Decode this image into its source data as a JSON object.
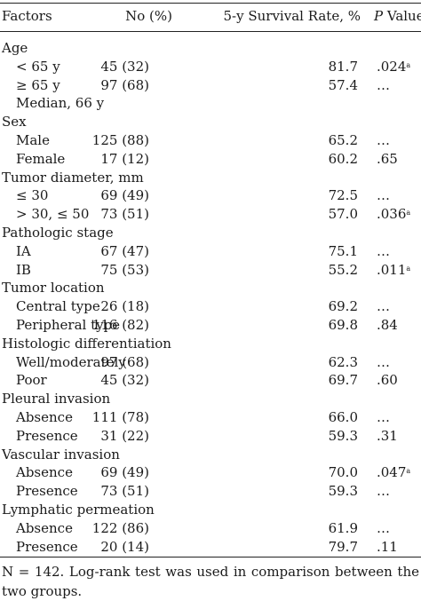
{
  "header": {
    "factors": "Factors",
    "no": "No (%)",
    "rate": "5-y Survival Rate, %",
    "p_italic": "P",
    "p_rest": " Value"
  },
  "rows": [
    {
      "factor": "Age",
      "sub": false,
      "no": "",
      "rate": "",
      "p": "",
      "mark": ""
    },
    {
      "factor": "< 65 y",
      "sub": true,
      "no": "45 (32)",
      "rate": "81.7",
      "p": ".024",
      "mark": "a"
    },
    {
      "factor": "≥ 65 y",
      "sub": true,
      "no": "97 (68)",
      "rate": "57.4",
      "p": "…",
      "mark": ""
    },
    {
      "factor": "Median, 66 y",
      "sub": true,
      "no": "",
      "rate": "",
      "p": "",
      "mark": ""
    },
    {
      "factor": "Sex",
      "sub": false,
      "no": "",
      "rate": "",
      "p": "",
      "mark": ""
    },
    {
      "factor": "Male",
      "sub": true,
      "no": "125 (88)",
      "rate": "65.2",
      "p": "…",
      "mark": ""
    },
    {
      "factor": "Female",
      "sub": true,
      "no": "17 (12)",
      "rate": "60.2",
      "p": ".65",
      "mark": ""
    },
    {
      "factor": "Tumor diameter, mm",
      "sub": false,
      "no": "",
      "rate": "",
      "p": "",
      "mark": ""
    },
    {
      "factor": "≤ 30",
      "sub": true,
      "no": "69 (49)",
      "rate": "72.5",
      "p": "…",
      "mark": ""
    },
    {
      "factor": "> 30, ≤ 50",
      "sub": true,
      "no": "73 (51)",
      "rate": "57.0",
      "p": ".036",
      "mark": "a"
    },
    {
      "factor": "Pathologic stage",
      "sub": false,
      "no": "",
      "rate": "",
      "p": "",
      "mark": ""
    },
    {
      "factor": "IA",
      "sub": true,
      "no": "67 (47)",
      "rate": "75.1",
      "p": "…",
      "mark": ""
    },
    {
      "factor": "IB",
      "sub": true,
      "no": "75 (53)",
      "rate": "55.2",
      "p": ".011",
      "mark": "a"
    },
    {
      "factor": "Tumor location",
      "sub": false,
      "no": "",
      "rate": "",
      "p": "",
      "mark": ""
    },
    {
      "factor": "Central type",
      "sub": true,
      "no": "26 (18)",
      "rate": "69.2",
      "p": "…",
      "mark": ""
    },
    {
      "factor": "Peripheral type",
      "sub": true,
      "no": "116 (82)",
      "rate": "69.8",
      "p": ".84",
      "mark": ""
    },
    {
      "factor": "Histologic differentiation",
      "sub": false,
      "no": "",
      "rate": "",
      "p": "",
      "mark": ""
    },
    {
      "factor": "Well/moderately",
      "sub": true,
      "no": "97 (68)",
      "rate": "62.3",
      "p": "…",
      "mark": ""
    },
    {
      "factor": "Poor",
      "sub": true,
      "no": "45 (32)",
      "rate": "69.7",
      "p": ".60",
      "mark": ""
    },
    {
      "factor": "Pleural invasion",
      "sub": false,
      "no": "",
      "rate": "",
      "p": "",
      "mark": ""
    },
    {
      "factor": "Absence",
      "sub": true,
      "no": "111 (78)",
      "rate": "66.0",
      "p": "…",
      "mark": ""
    },
    {
      "factor": "Presence",
      "sub": true,
      "no": "31 (22)",
      "rate": "59.3",
      "p": ".31",
      "mark": ""
    },
    {
      "factor": "Vascular invasion",
      "sub": false,
      "no": "",
      "rate": "",
      "p": "",
      "mark": ""
    },
    {
      "factor": "Absence",
      "sub": true,
      "no": "69 (49)",
      "rate": "70.0",
      "p": ".047",
      "mark": "a"
    },
    {
      "factor": "Presence",
      "sub": true,
      "no": "73 (51)",
      "rate": "59.3",
      "p": "…",
      "mark": ""
    },
    {
      "factor": "Lymphatic permeation",
      "sub": false,
      "no": "",
      "rate": "",
      "p": "",
      "mark": ""
    },
    {
      "factor": "Absence",
      "sub": true,
      "no": "122 (86)",
      "rate": "61.9",
      "p": "…",
      "mark": ""
    },
    {
      "factor": "Presence",
      "sub": true,
      "no": "20 (14)",
      "rate": "79.7",
      "p": ".11",
      "mark": ""
    }
  ],
  "footnote": "N = 142. Log-rank test was used in comparison between the two groups."
}
